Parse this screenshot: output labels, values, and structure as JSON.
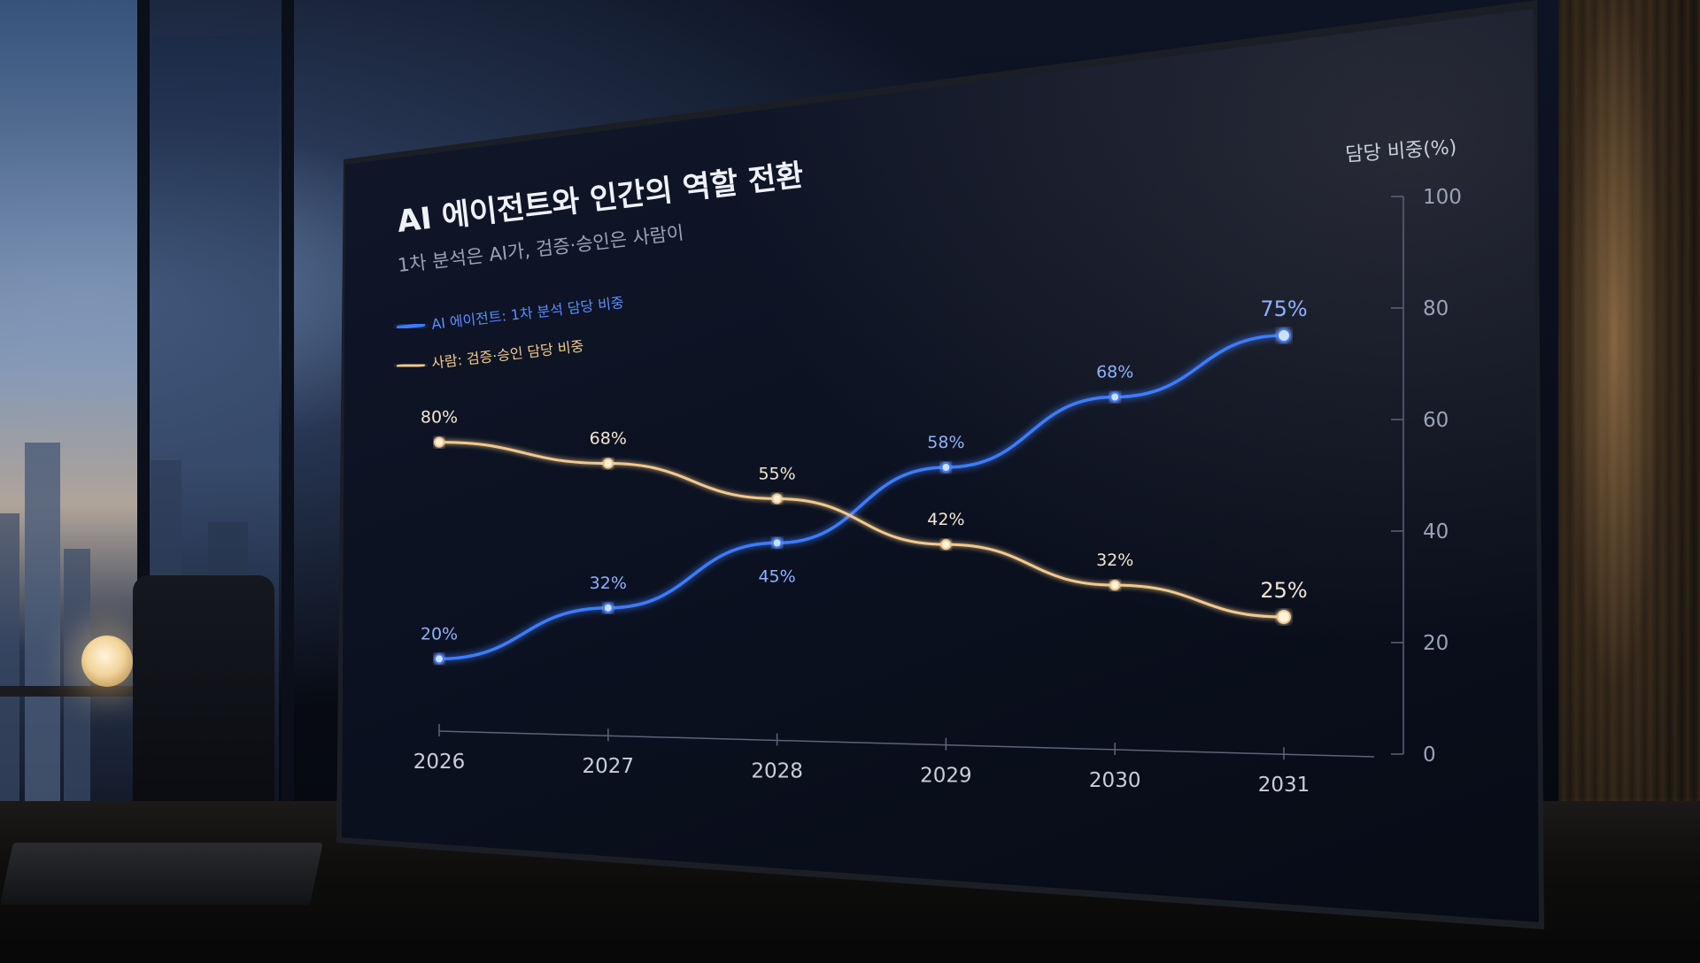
{
  "chart_data": {
    "type": "line",
    "title": "AI 에이전트와 인간의 역할 전환",
    "subtitle": "1차 분석은 AI가, 검증·승인은 사람이",
    "xlabel": "",
    "ylabel": "담당 비중(%)",
    "ylim": [
      0,
      100
    ],
    "yticks": [
      "0",
      "20",
      "40",
      "60",
      "80",
      "100"
    ],
    "x": [
      "2026",
      "2027",
      "2028",
      "2029",
      "2030",
      "2031"
    ],
    "legend_position": "top-left",
    "grid": false,
    "series": [
      {
        "name": "AI 에이전트: 1차 분석 담당 비중",
        "color": "#3d7bff",
        "values": [
          20,
          32,
          45,
          58,
          68,
          75
        ],
        "labels": [
          "20%",
          "32%",
          "45%",
          "58%",
          "68%",
          "75%"
        ]
      },
      {
        "name": "사람: 검증·승인 담당 비중",
        "color": "#f2c98c",
        "values": [
          80,
          68,
          55,
          42,
          32,
          25
        ],
        "labels": [
          "80%",
          "68%",
          "55%",
          "42%",
          "32%",
          "25%"
        ]
      }
    ]
  }
}
